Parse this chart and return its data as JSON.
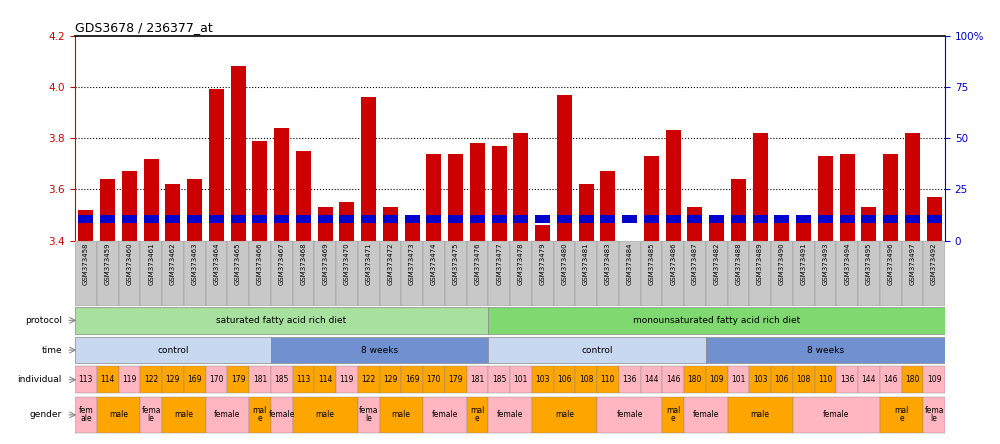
{
  "title": "GDS3678 / 236377_at",
  "ylim_left": [
    3.4,
    4.2
  ],
  "ylim_right": [
    0,
    100
  ],
  "yticks_left": [
    3.4,
    3.6,
    3.8,
    4.0,
    4.2
  ],
  "yticks_right": [
    0,
    25,
    50,
    75,
    100
  ],
  "ytick_labels_right": [
    "0",
    "25",
    "50",
    "75",
    "100%"
  ],
  "bar_width": 0.7,
  "samples": [
    "GSM373458",
    "GSM373459",
    "GSM373460",
    "GSM373461",
    "GSM373462",
    "GSM373463",
    "GSM373464",
    "GSM373465",
    "GSM373466",
    "GSM373467",
    "GSM373468",
    "GSM373469",
    "GSM373470",
    "GSM373471",
    "GSM373472",
    "GSM373473",
    "GSM373474",
    "GSM373475",
    "GSM373476",
    "GSM373477",
    "GSM373478",
    "GSM373479",
    "GSM373480",
    "GSM373481",
    "GSM373483",
    "GSM373484",
    "GSM373485",
    "GSM373486",
    "GSM373487",
    "GSM373482",
    "GSM373488",
    "GSM373489",
    "GSM373490",
    "GSM373491",
    "GSM373493",
    "GSM373494",
    "GSM373495",
    "GSM373496",
    "GSM373497",
    "GSM373492"
  ],
  "transformed_count": [
    3.52,
    3.64,
    3.67,
    3.72,
    3.62,
    3.64,
    3.99,
    4.08,
    3.79,
    3.84,
    3.75,
    3.53,
    3.55,
    3.96,
    3.53,
    3.49,
    3.74,
    3.74,
    3.78,
    3.77,
    3.82,
    3.46,
    3.97,
    3.62,
    3.67,
    3.35,
    3.73,
    3.83,
    3.53,
    3.49,
    3.64,
    3.82,
    3.49,
    3.5,
    3.73,
    3.74,
    3.53,
    3.74,
    3.82,
    3.57
  ],
  "percentile_rank": [
    18,
    21,
    20,
    22,
    19,
    20,
    22,
    22,
    20,
    20,
    20,
    19,
    20,
    22,
    19,
    18,
    21,
    20,
    21,
    20,
    21,
    18,
    25,
    19,
    19,
    17,
    20,
    21,
    19,
    14,
    19,
    21,
    18,
    18,
    20,
    20,
    17,
    20,
    22,
    19
  ],
  "time_regions": [
    {
      "label": "control",
      "start": 0,
      "end": 9,
      "color": "#c8d8f0"
    },
    {
      "label": "8 weeks",
      "start": 9,
      "end": 19,
      "color": "#7090d0"
    },
    {
      "label": "control",
      "start": 19,
      "end": 29,
      "color": "#c8d8f0"
    },
    {
      "label": "8 weeks",
      "start": 29,
      "end": 40,
      "color": "#7090d0"
    }
  ],
  "individual_labels": [
    "113",
    "114",
    "119",
    "122",
    "129",
    "169",
    "170",
    "179",
    "181",
    "185",
    "113",
    "114",
    "119",
    "122",
    "129",
    "169",
    "170",
    "179",
    "181",
    "185",
    "101",
    "103",
    "106",
    "108",
    "110",
    "136",
    "144",
    "146",
    "180",
    "109",
    "101",
    "103",
    "106",
    "108",
    "110",
    "136",
    "144",
    "146",
    "180",
    "109"
  ],
  "individual_colors": [
    "#ffb6c1",
    "#ffa500",
    "#ffb6c1",
    "#ffa500",
    "#ffa500",
    "#ffa500",
    "#ffb6c1",
    "#ffa500",
    "#ffb6c1",
    "#ffb6c1",
    "#ffa500",
    "#ffa500",
    "#ffb6c1",
    "#ffa500",
    "#ffa500",
    "#ffa500",
    "#ffa500",
    "#ffa500",
    "#ffb6c1",
    "#ffb6c1",
    "#ffb6c1",
    "#ffa500",
    "#ffa500",
    "#ffa500",
    "#ffa500",
    "#ffb6c1",
    "#ffb6c1",
    "#ffb6c1",
    "#ffa500",
    "#ffa500",
    "#ffb6c1",
    "#ffa500",
    "#ffa500",
    "#ffa500",
    "#ffa500",
    "#ffb6c1",
    "#ffb6c1",
    "#ffb6c1",
    "#ffa500",
    "#ffb6c1"
  ],
  "gender_groups": [
    {
      "label": "fem\nale",
      "start": 0,
      "end": 1,
      "color": "#ffb6c1"
    },
    {
      "label": "male",
      "start": 1,
      "end": 3,
      "color": "#ffa500"
    },
    {
      "label": "fema\nle",
      "start": 3,
      "end": 4,
      "color": "#ffb6c1"
    },
    {
      "label": "male",
      "start": 4,
      "end": 6,
      "color": "#ffa500"
    },
    {
      "label": "female",
      "start": 6,
      "end": 8,
      "color": "#ffb6c1"
    },
    {
      "label": "mal\ne",
      "start": 8,
      "end": 9,
      "color": "#ffa500"
    },
    {
      "label": "female",
      "start": 9,
      "end": 10,
      "color": "#ffb6c1"
    },
    {
      "label": "male",
      "start": 10,
      "end": 13,
      "color": "#ffa500"
    },
    {
      "label": "fema\nle",
      "start": 13,
      "end": 14,
      "color": "#ffb6c1"
    },
    {
      "label": "male",
      "start": 14,
      "end": 16,
      "color": "#ffa500"
    },
    {
      "label": "female",
      "start": 16,
      "end": 18,
      "color": "#ffb6c1"
    },
    {
      "label": "mal\ne",
      "start": 18,
      "end": 19,
      "color": "#ffa500"
    },
    {
      "label": "female",
      "start": 19,
      "end": 21,
      "color": "#ffb6c1"
    },
    {
      "label": "male",
      "start": 21,
      "end": 24,
      "color": "#ffa500"
    },
    {
      "label": "female",
      "start": 24,
      "end": 27,
      "color": "#ffb6c1"
    },
    {
      "label": "mal\ne",
      "start": 27,
      "end": 28,
      "color": "#ffa500"
    },
    {
      "label": "female",
      "start": 28,
      "end": 30,
      "color": "#ffb6c1"
    },
    {
      "label": "male",
      "start": 30,
      "end": 33,
      "color": "#ffa500"
    },
    {
      "label": "female",
      "start": 33,
      "end": 37,
      "color": "#ffb6c1"
    },
    {
      "label": "mal\ne",
      "start": 37,
      "end": 39,
      "color": "#ffa500"
    },
    {
      "label": "fema\nle",
      "start": 39,
      "end": 40,
      "color": "#ffb6c1"
    }
  ],
  "bar_color_red": "#cc0000",
  "bar_color_blue": "#0000cc",
  "axis_color_left": "#cc0000",
  "axis_color_right": "#0000cc",
  "tick_bg_color": "#c8c8c8",
  "n_samples": 40,
  "prot1_color": "#a8e0a0",
  "prot2_color": "#80d870",
  "blue_bar_bottom": 3.47,
  "blue_bar_height": 0.03
}
